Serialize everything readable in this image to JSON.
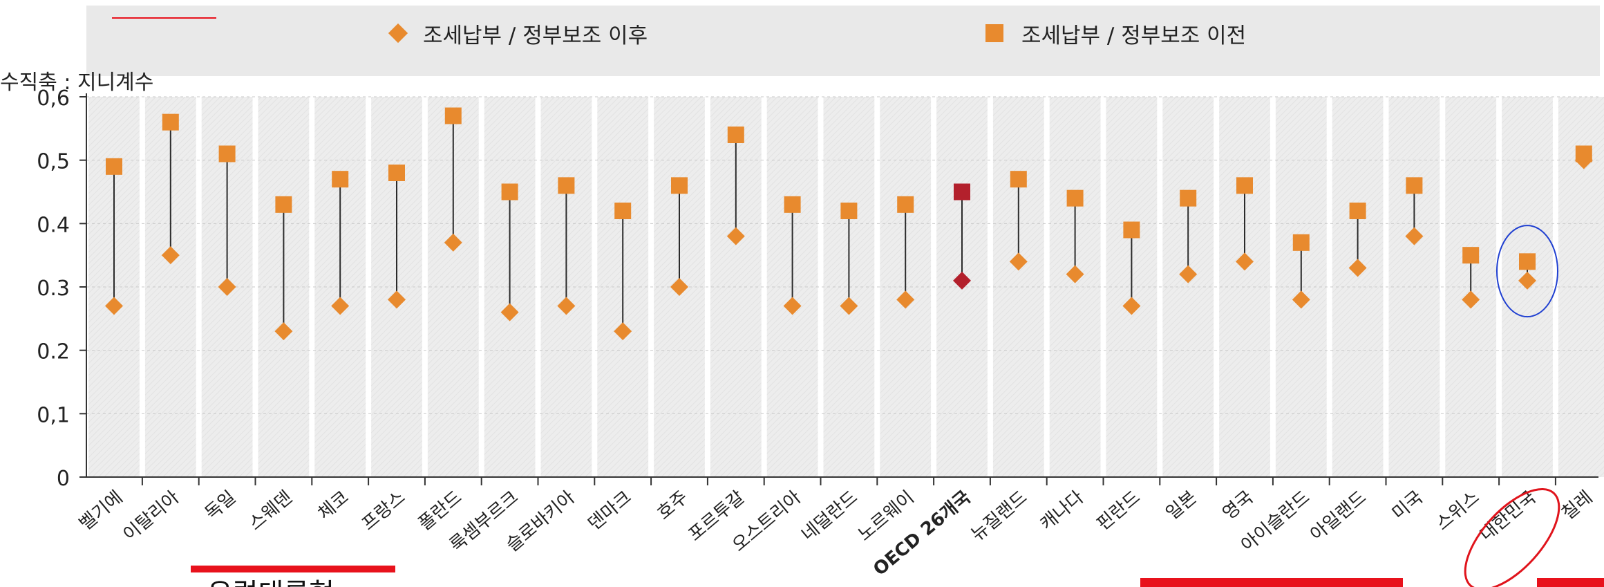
{
  "legend": {
    "after_label": "조세납부 / 정부보조 이후",
    "before_label": "조세납부 / 정부보조 이전"
  },
  "colors": {
    "marker": "#e88a2e",
    "highlight": "#b3202c",
    "stem": "#2b2b2b",
    "circle": "#1f3fd1",
    "ellipse": "#e0141c",
    "underline": "#e8121c"
  },
  "annotation_text": "유럽대륙형",
  "chart_data": {
    "type": "dot-range",
    "ylabel": "수직축 : 지니계수",
    "ylim": [
      0,
      0.6
    ],
    "yticks": [
      "0",
      "0,1",
      "0.2",
      "0.3",
      "0.4",
      "0,5",
      "0,6"
    ],
    "grid": true,
    "legend_position": "top",
    "categories": [
      "벨기에",
      "이탈리아",
      "독일",
      "스웨덴",
      "체코",
      "프랑스",
      "폴란드",
      "룩셈부르크",
      "슬로바키아",
      "덴마크",
      "호주",
      "포르투갈",
      "오스트리아",
      "네덜란드",
      "노르웨이",
      "OECD 26개국",
      "뉴질랜드",
      "캐나다",
      "핀란드",
      "일본",
      "영국",
      "아이슬란드",
      "아일랜드",
      "미국",
      "스위스",
      "대한민국",
      "칠레"
    ],
    "series": [
      {
        "name": "조세납부 / 정부보조 이후",
        "marker": "diamond",
        "values": [
          0.27,
          0.35,
          0.3,
          0.23,
          0.27,
          0.28,
          0.37,
          0.26,
          0.27,
          0.23,
          0.3,
          0.38,
          0.27,
          0.27,
          0.28,
          0.31,
          0.34,
          0.32,
          0.27,
          0.32,
          0.34,
          0.28,
          0.33,
          0.38,
          0.28,
          0.31,
          0.5
        ]
      },
      {
        "name": "조세납부 / 정부보조 이전",
        "marker": "square",
        "values": [
          0.49,
          0.56,
          0.51,
          0.43,
          0.47,
          0.48,
          0.57,
          0.45,
          0.46,
          0.42,
          0.46,
          0.54,
          0.43,
          0.42,
          0.43,
          0.45,
          0.47,
          0.44,
          0.39,
          0.44,
          0.46,
          0.37,
          0.42,
          0.46,
          0.35,
          0.34,
          0.51
        ]
      }
    ],
    "highlighted_category": "OECD 26개국",
    "circled_category": "대한민국"
  }
}
